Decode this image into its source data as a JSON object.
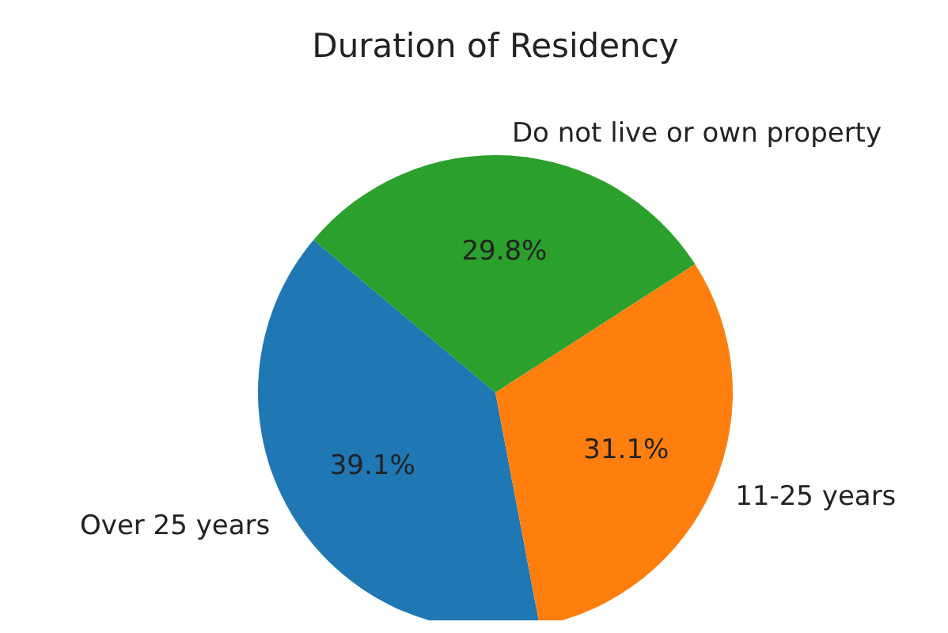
{
  "chart_data": {
    "type": "pie",
    "title": "Duration of Residency",
    "categories": [
      "Over 25 years",
      "11-25 years",
      "Do not live or own property"
    ],
    "values": [
      39.1,
      31.1,
      29.8
    ],
    "colors": [
      "#1f77b4",
      "#ff7f0e",
      "#2ca02c"
    ],
    "value_labels": [
      "39.1%",
      "31.1%",
      "29.8%"
    ]
  }
}
